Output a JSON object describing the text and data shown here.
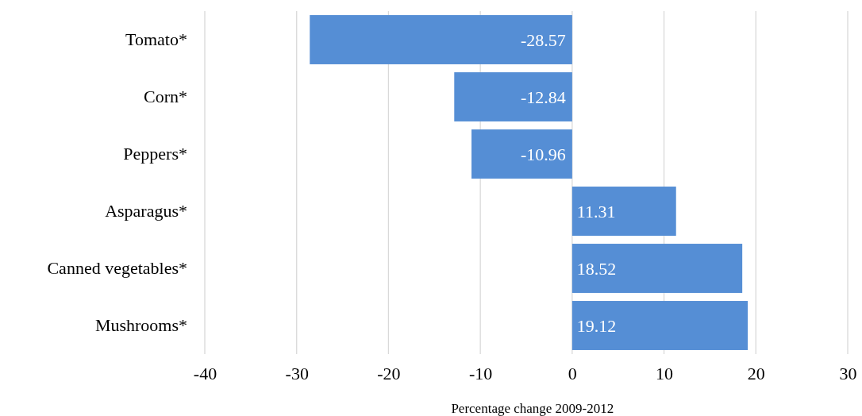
{
  "chart_data": {
    "type": "bar",
    "orientation": "horizontal",
    "xlabel": "Percentage change 2009-2012",
    "categories": [
      "Tomato*",
      "Corn*",
      "Peppers*",
      "Asparagus*",
      "Canned vegetables*",
      "Mushrooms*"
    ],
    "values": [
      -28.57,
      -12.84,
      -10.96,
      11.31,
      18.52,
      19.12
    ],
    "color": "#558ed5",
    "xlim": [
      -40,
      30
    ],
    "xticks": [
      -40,
      -30,
      -20,
      -10,
      0,
      10,
      20,
      30
    ],
    "grid": "x",
    "data_labels": true
  }
}
